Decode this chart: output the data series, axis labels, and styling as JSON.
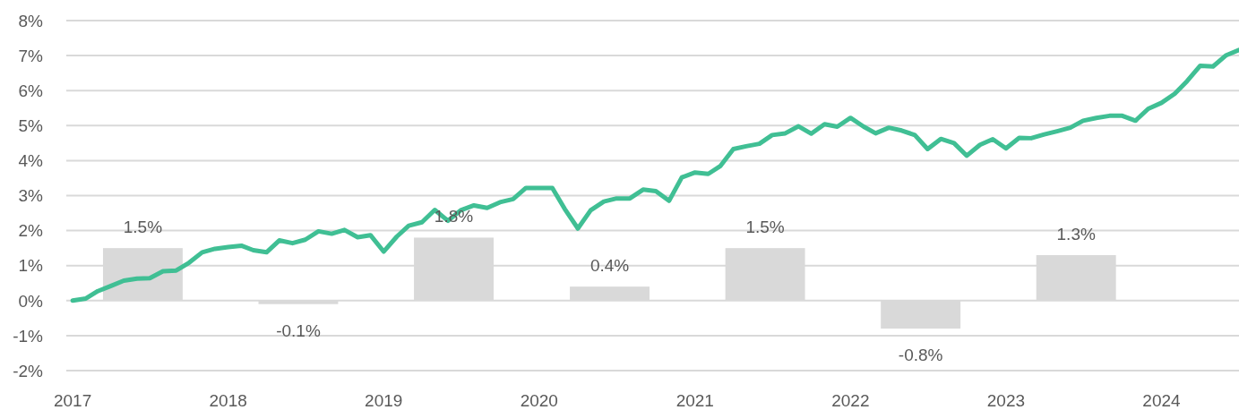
{
  "chart_data": {
    "type": "line",
    "xlim": [
      "2016-12-17",
      "2024-07-01"
    ],
    "xticks": [
      "2017",
      "2018",
      "2019",
      "2020",
      "2021",
      "2022",
      "2023",
      "2024"
    ],
    "ylim": [
      -2,
      8
    ],
    "yticks": [
      {
        "value": -2,
        "label": "-2%"
      },
      {
        "value": -1,
        "label": "-1%"
      },
      {
        "value": 0,
        "label": "0%"
      },
      {
        "value": 1,
        "label": "1%"
      },
      {
        "value": 2,
        "label": "2%"
      },
      {
        "value": 3,
        "label": "3%"
      },
      {
        "value": 4,
        "label": "4%"
      },
      {
        "value": 5,
        "label": "5%"
      },
      {
        "value": 6,
        "label": "6%"
      },
      {
        "value": 7,
        "label": "7%"
      },
      {
        "value": 8,
        "label": "8%"
      }
    ],
    "grid": "y",
    "series": [
      {
        "type": "bar",
        "color": "#d9d9d9",
        "x": [
          "2017-06-15",
          "2018-06-15",
          "2019-06-15",
          "2020-06-15",
          "2021-06-15",
          "2022-06-15",
          "2023-06-15"
        ],
        "values": [
          1.5,
          -0.1,
          1.8,
          0.4,
          1.5,
          -0.8,
          1.3
        ],
        "value_labels": [
          "1.5%",
          "-0.1%",
          "1.8%",
          "0.4%",
          "1.5%",
          "-0.8%",
          "1.3%"
        ]
      },
      {
        "color": "#40bf94",
        "x": [
          "2017-01",
          "2017-02",
          "2017-03",
          "2017-04",
          "2017-05",
          "2017-06",
          "2017-07",
          "2017-08",
          "2017-09",
          "2017-10",
          "2017-11",
          "2017-12",
          "2018-01",
          "2018-02",
          "2018-03",
          "2018-04",
          "2018-05",
          "2018-06",
          "2018-07",
          "2018-08",
          "2018-09",
          "2018-10",
          "2018-11",
          "2018-12",
          "2019-01",
          "2019-02",
          "2019-03",
          "2019-04",
          "2019-05",
          "2019-06",
          "2019-07",
          "2019-08",
          "2019-09",
          "2019-10",
          "2019-11",
          "2019-12",
          "2020-01",
          "2020-02",
          "2020-03",
          "2020-04",
          "2020-05",
          "2020-06",
          "2020-07",
          "2020-08",
          "2020-09",
          "2020-10",
          "2020-11",
          "2020-12",
          "2021-01",
          "2021-02",
          "2021-03",
          "2021-04",
          "2021-05",
          "2021-06",
          "2021-07",
          "2021-08",
          "2021-09",
          "2021-10",
          "2021-11",
          "2021-12",
          "2022-01",
          "2022-02",
          "2022-03",
          "2022-04",
          "2022-05",
          "2022-06",
          "2022-07",
          "2022-08",
          "2022-09",
          "2022-10",
          "2022-11",
          "2022-12",
          "2023-01",
          "2023-02",
          "2023-03",
          "2023-04",
          "2023-05",
          "2023-06",
          "2023-07",
          "2023-08",
          "2023-09",
          "2023-10",
          "2023-11",
          "2023-12",
          "2024-01",
          "2024-02",
          "2024-03",
          "2024-04",
          "2024-05",
          "2024-06",
          "2024-07"
        ],
        "values": [
          0.0,
          0.06,
          0.27,
          0.42,
          0.57,
          0.63,
          0.64,
          0.84,
          0.86,
          1.08,
          1.38,
          1.48,
          1.53,
          1.57,
          1.44,
          1.38,
          1.72,
          1.64,
          1.74,
          1.98,
          1.91,
          2.02,
          1.81,
          1.87,
          1.4,
          1.83,
          2.14,
          2.24,
          2.59,
          2.28,
          2.58,
          2.72,
          2.65,
          2.81,
          2.9,
          3.22,
          3.22,
          3.22,
          2.62,
          2.06,
          2.58,
          2.83,
          2.92,
          2.92,
          3.17,
          3.13,
          2.85,
          3.52,
          3.66,
          3.62,
          3.84,
          4.33,
          4.41,
          4.48,
          4.73,
          4.78,
          4.98,
          4.77,
          5.04,
          4.97,
          5.22,
          4.97,
          4.78,
          4.94,
          4.86,
          4.73,
          4.33,
          4.62,
          4.5,
          4.14,
          4.45,
          4.61,
          4.35,
          4.65,
          4.64,
          4.75,
          4.84,
          4.94,
          5.14,
          5.22,
          5.28,
          5.28,
          5.14,
          5.48,
          5.65,
          5.91,
          6.27,
          6.71,
          6.69,
          7.01,
          7.16
        ]
      }
    ]
  }
}
